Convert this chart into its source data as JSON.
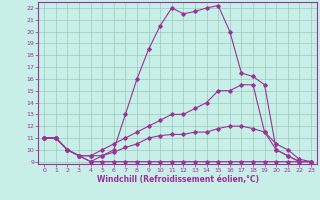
{
  "xlabel": "Windchill (Refroidissement éolien,°C)",
  "xlim": [
    -0.5,
    23.5
  ],
  "ylim": [
    8.8,
    22.5
  ],
  "yticks": [
    9,
    10,
    11,
    12,
    13,
    14,
    15,
    16,
    17,
    18,
    19,
    20,
    21,
    22
  ],
  "xticks": [
    0,
    1,
    2,
    3,
    4,
    5,
    6,
    7,
    8,
    9,
    10,
    11,
    12,
    13,
    14,
    15,
    16,
    17,
    18,
    19,
    20,
    21,
    22,
    23
  ],
  "background_color": "#c8eee8",
  "grid_color": "#99ccbb",
  "line_color": "#993399",
  "line1_x": [
    0,
    1,
    2,
    3,
    4,
    5,
    6,
    7,
    8,
    9,
    10,
    11,
    12,
    13,
    14,
    15,
    16,
    17,
    18,
    19,
    20,
    21,
    22,
    23
  ],
  "line1_y": [
    11,
    11,
    10,
    9.5,
    9,
    9.5,
    10,
    13,
    16,
    18.5,
    20.5,
    22,
    21.5,
    21.7,
    22,
    22.2,
    20,
    16.5,
    16.2,
    15.5,
    10,
    9.5,
    9,
    9
  ],
  "line2_x": [
    0,
    1,
    2,
    3,
    4,
    5,
    6,
    7,
    8,
    9,
    10,
    11,
    12,
    13,
    14,
    15,
    16,
    17,
    18,
    19,
    20,
    21,
    22,
    23
  ],
  "line2_y": [
    11,
    11,
    10,
    9.5,
    9.5,
    10,
    10.5,
    11,
    11.5,
    12,
    12.5,
    13,
    13,
    13.5,
    14,
    15,
    15,
    15.5,
    15.5,
    11.5,
    10,
    9.5,
    9,
    9
  ],
  "line3_x": [
    0,
    1,
    2,
    3,
    4,
    5,
    6,
    7,
    8,
    9,
    10,
    11,
    12,
    13,
    14,
    15,
    16,
    17,
    18,
    19,
    20,
    21,
    22,
    23
  ],
  "line3_y": [
    11,
    11,
    10,
    9.5,
    9,
    9,
    9,
    9,
    9,
    9,
    9,
    9,
    9,
    9,
    9,
    9,
    9,
    9,
    9,
    9,
    9,
    9,
    9,
    9
  ],
  "line4_x": [
    0,
    1,
    2,
    3,
    4,
    5,
    6,
    7,
    8,
    9,
    10,
    11,
    12,
    13,
    14,
    15,
    16,
    17,
    18,
    19,
    20,
    21,
    22,
    23
  ],
  "line4_y": [
    11,
    11,
    10,
    9.5,
    9.5,
    9.5,
    9.8,
    10.2,
    10.5,
    11,
    11.2,
    11.3,
    11.3,
    11.5,
    11.5,
    11.8,
    12,
    12,
    11.8,
    11.5,
    10.5,
    10,
    9.2,
    9
  ]
}
